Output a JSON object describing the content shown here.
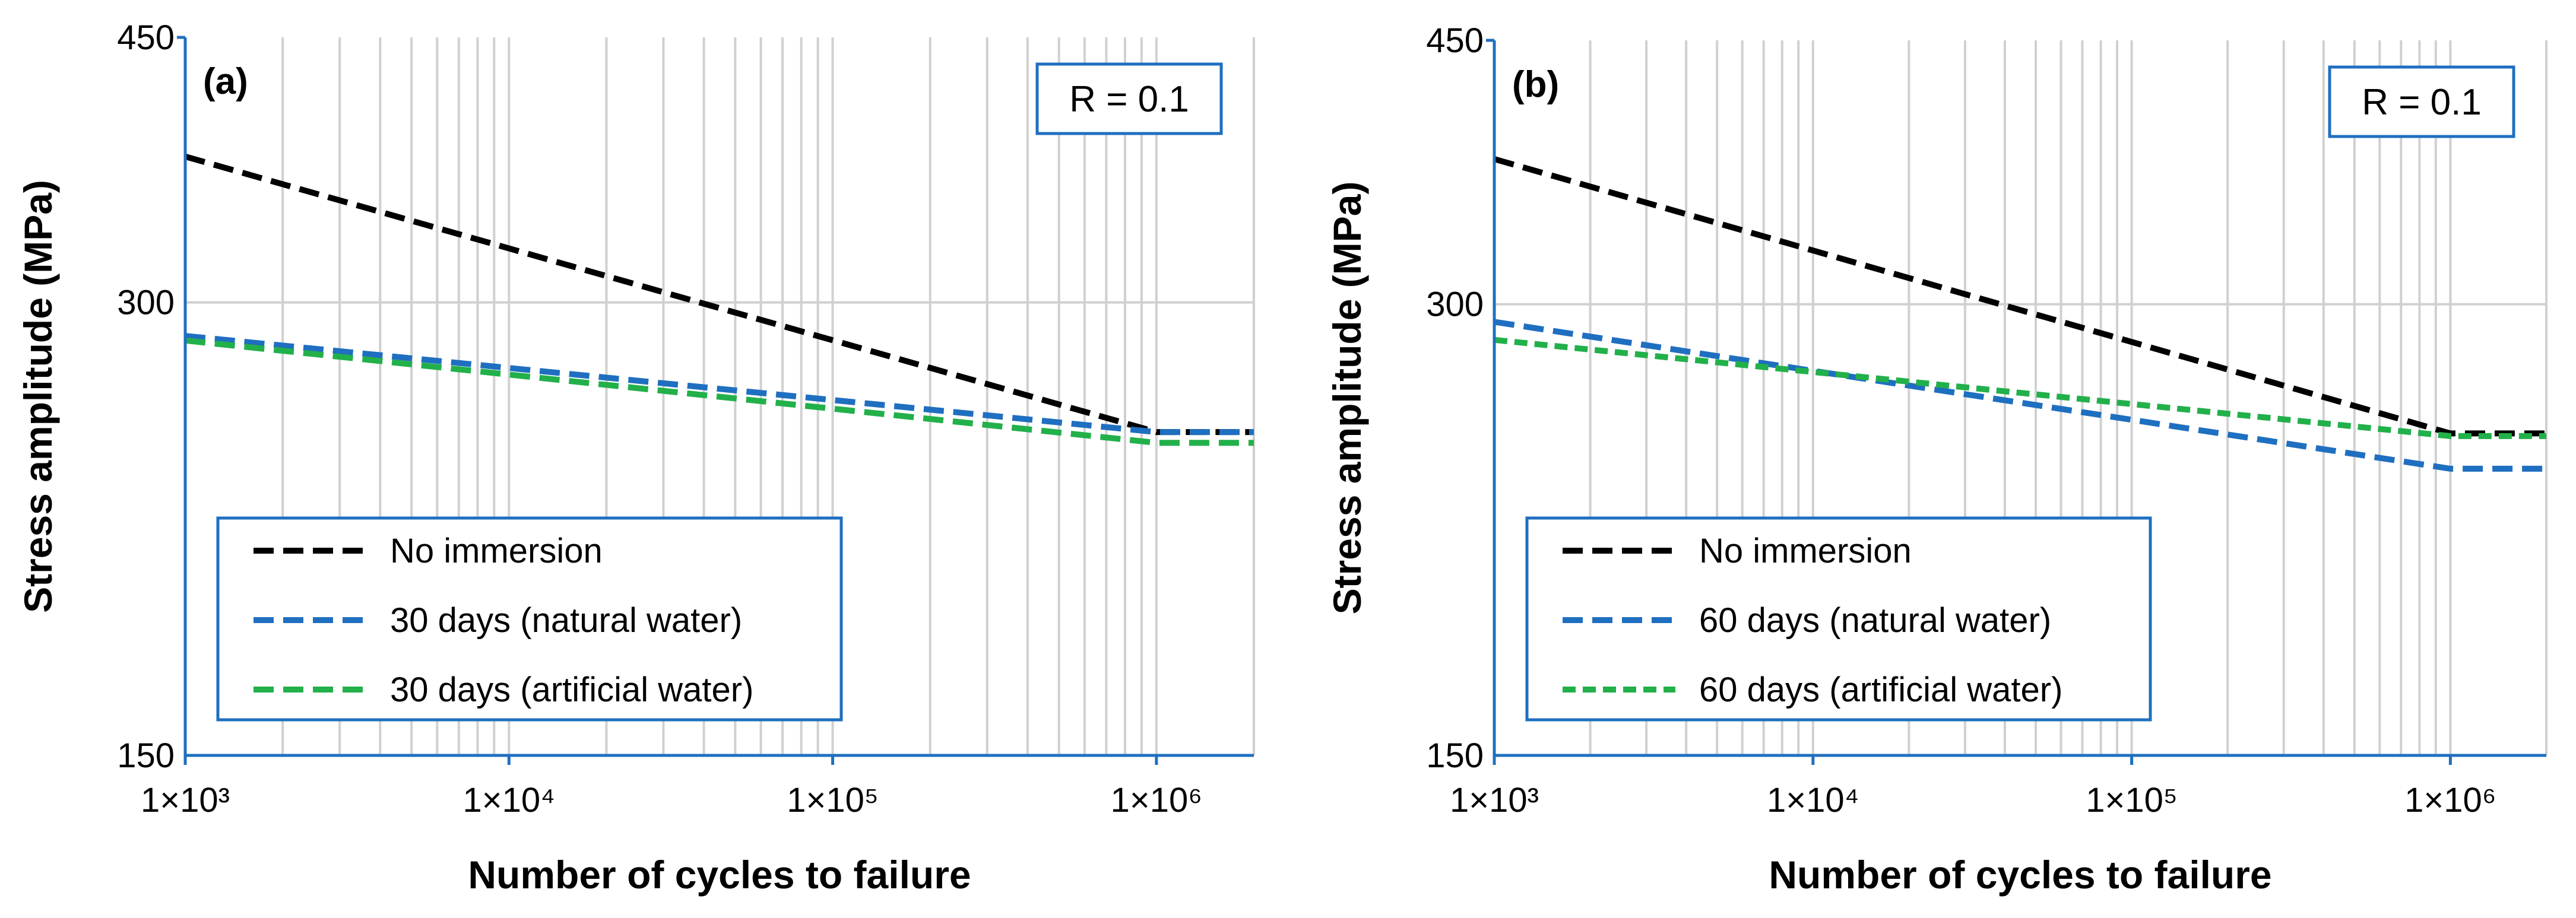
{
  "chart_data": [
    {
      "type": "line",
      "panel_label": "(a)",
      "annotation": "R = 0.1",
      "xlabel": "Number of cycles to failure",
      "ylabel": "Stress amplitude (MPa)",
      "x_scale": "log",
      "y_scale": "log",
      "xlim": [
        1000,
        2000000
      ],
      "ylim": [
        150,
        450
      ],
      "x_ticks": [
        1000,
        10000,
        100000,
        1000000
      ],
      "x_tick_labels": [
        "1×10³",
        "1×10⁴",
        "1×10⁵",
        "1×10⁶"
      ],
      "y_ticks": [
        150,
        300,
        450
      ],
      "y_tick_labels": [
        "150",
        "300",
        "450"
      ],
      "grid": true,
      "legend_position": "bottom-left",
      "series": [
        {
          "name": "No immersion",
          "color": "#000000",
          "dash": "long",
          "x": [
            1000,
            1000000,
            2000000
          ],
          "y": [
            375,
            246,
            246
          ]
        },
        {
          "name": "30 days (natural water)",
          "color": "#1f6fc0",
          "dash": "long",
          "x": [
            1000,
            1000000,
            2000000
          ],
          "y": [
            285,
            246,
            246
          ]
        },
        {
          "name": "30 days (artificial water)",
          "color": "#22b04a",
          "dash": "long",
          "x": [
            1000,
            1000000,
            2000000
          ],
          "y": [
            283,
            242,
            242
          ]
        }
      ]
    },
    {
      "type": "line",
      "panel_label": "(b)",
      "annotation": "R = 0.1",
      "xlabel": "Number of cycles to failure",
      "ylabel": "Stress amplitude (MPa)",
      "x_scale": "log",
      "y_scale": "log",
      "xlim": [
        1000,
        2000000
      ],
      "ylim": [
        150,
        450
      ],
      "x_ticks": [
        1000,
        10000,
        100000,
        1000000
      ],
      "x_tick_labels": [
        "1×10³",
        "1×10⁴",
        "1×10⁵",
        "1×10⁶"
      ],
      "y_ticks": [
        150,
        300,
        450
      ],
      "y_tick_labels": [
        "150",
        "300",
        "450"
      ],
      "grid": true,
      "legend_position": "bottom-left",
      "series": [
        {
          "name": "No immersion",
          "color": "#000000",
          "dash": "long",
          "x": [
            1000,
            1000000,
            2000000
          ],
          "y": [
            375,
            246,
            246
          ]
        },
        {
          "name": "60 days (natural water)",
          "color": "#1f6fc0",
          "dash": "long",
          "x": [
            1000,
            1000000,
            2000000
          ],
          "y": [
            292,
            233,
            233
          ]
        },
        {
          "name": "60 days (artificial water)",
          "color": "#22b04a",
          "dash": "short",
          "x": [
            1000,
            1000000,
            2000000
          ],
          "y": [
            284,
            245,
            245
          ]
        }
      ]
    }
  ]
}
